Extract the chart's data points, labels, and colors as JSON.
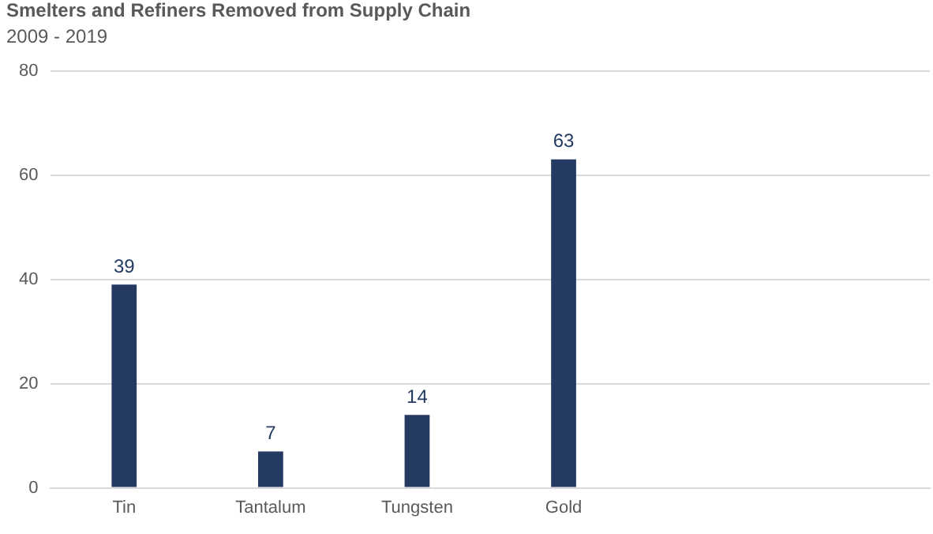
{
  "chart_data": {
    "type": "bar",
    "title": "Smelters and Refiners Removed from Supply Chain",
    "subtitle": "2009 - 2019",
    "categories": [
      "Tin",
      "Tantalum",
      "Tungsten",
      "Gold",
      null,
      null
    ],
    "values": [
      39,
      7,
      14,
      63,
      null,
      null
    ],
    "color": "#243a63",
    "ylim": [
      0,
      80
    ],
    "yticks": [
      0,
      20,
      40,
      60,
      80
    ],
    "grid": "y",
    "data_labels": true,
    "legend": false
  }
}
